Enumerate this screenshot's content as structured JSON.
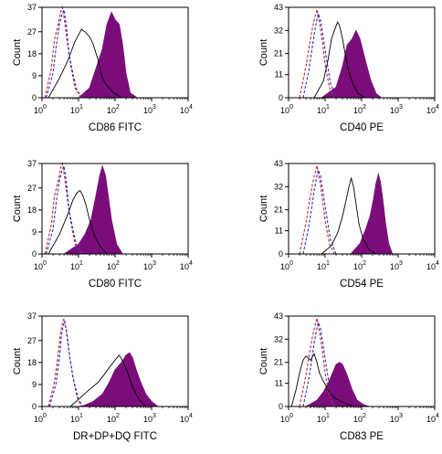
{
  "page": {
    "background": "#ffffff"
  },
  "style": {
    "fill_color": "#7b0d7b",
    "open_color": "#000000",
    "dash_red": "#d42020",
    "dash_blue": "#2030d0",
    "axis_color": "#000000"
  },
  "chart_data": [
    {
      "type": "area",
      "xlabel": "CD86 FITC",
      "ylabel": "Count",
      "xscale": "log",
      "xlim": [
        1,
        10000
      ],
      "ylim": [
        0,
        37
      ],
      "x_ticks": [
        "10",
        "10",
        "10",
        "10",
        "10"
      ],
      "x_tick_exponents": [
        "0",
        "1",
        "2",
        "3",
        "4"
      ],
      "y_ticks": [
        "0",
        "9",
        "18",
        "27",
        "37"
      ],
      "series": [
        {
          "style": "filled",
          "color": "#7b0d7b",
          "x": [
            1,
            10,
            20,
            30,
            45,
            60,
            80,
            100,
            130,
            160,
            200,
            260,
            400
          ],
          "y": [
            0,
            0,
            4,
            12,
            20,
            30,
            35,
            32,
            30,
            22,
            10,
            2,
            0
          ]
        },
        {
          "style": "solid",
          "color": "#000000",
          "x": [
            1.5,
            3,
            5,
            8,
            12,
            15,
            20,
            25,
            35,
            45,
            60,
            90,
            150
          ],
          "y": [
            0,
            8,
            15,
            23,
            28,
            27,
            25,
            22,
            15,
            8,
            5,
            2,
            0
          ]
        },
        {
          "style": "dashed",
          "color": "#d42020",
          "x": [
            1.2,
            1.8,
            2.2,
            2.8,
            3.2,
            3.6,
            4,
            5,
            6,
            8,
            12
          ],
          "y": [
            0,
            12,
            24,
            30,
            35,
            37,
            33,
            22,
            14,
            4,
            0
          ]
        },
        {
          "style": "dashed",
          "color": "#2030d0",
          "x": [
            1.3,
            2,
            2.5,
            3,
            3.5,
            4,
            4.6,
            5.5,
            7,
            9,
            13
          ],
          "y": [
            0,
            10,
            22,
            30,
            34,
            36,
            30,
            18,
            10,
            3,
            0
          ]
        }
      ]
    },
    {
      "type": "area",
      "xlabel": "CD40 PE",
      "ylabel": "Count",
      "xscale": "log",
      "xlim": [
        1,
        10000
      ],
      "ylim": [
        0,
        43
      ],
      "x_ticks": [
        "10",
        "10",
        "10",
        "10",
        "10"
      ],
      "x_tick_exponents": [
        "0",
        "1",
        "2",
        "3",
        "4"
      ],
      "y_ticks": [
        "0",
        "11",
        "21",
        "32",
        "43"
      ],
      "series": [
        {
          "style": "filled",
          "color": "#7b0d7b",
          "x": [
            8,
            20,
            30,
            40,
            55,
            70,
            90,
            110,
            140,
            180,
            250,
            350
          ],
          "y": [
            0,
            5,
            15,
            25,
            28,
            32,
            28,
            22,
            15,
            8,
            2,
            0
          ]
        },
        {
          "style": "solid",
          "color": "#000000",
          "x": [
            5,
            9,
            12,
            15,
            18,
            22,
            25,
            30,
            36,
            45,
            60,
            80,
            120
          ],
          "y": [
            0,
            8,
            18,
            28,
            32,
            36,
            34,
            28,
            20,
            12,
            6,
            2,
            0
          ]
        },
        {
          "style": "dashed",
          "color": "#d42020",
          "x": [
            2,
            3,
            3.8,
            4.5,
            5.2,
            6,
            7,
            8.5,
            10,
            13,
            18
          ],
          "y": [
            0,
            15,
            26,
            33,
            38,
            42,
            36,
            26,
            16,
            5,
            0
          ]
        },
        {
          "style": "dashed",
          "color": "#2030d0",
          "x": [
            2.5,
            3.5,
            4.3,
            5,
            5.8,
            6.5,
            7.5,
            9,
            11,
            14,
            20
          ],
          "y": [
            0,
            12,
            22,
            30,
            36,
            40,
            37,
            28,
            18,
            7,
            0
          ]
        }
      ]
    },
    {
      "type": "area",
      "xlabel": "CD80 FITC",
      "ylabel": "Count",
      "xscale": "log",
      "xlim": [
        1,
        10000
      ],
      "ylim": [
        0,
        37
      ],
      "x_ticks": [
        "10",
        "10",
        "10",
        "10",
        "10"
      ],
      "x_tick_exponents": [
        "0",
        "1",
        "2",
        "3",
        "4"
      ],
      "y_ticks": [
        "0",
        "9",
        "18",
        "27",
        "37"
      ],
      "series": [
        {
          "style": "filled",
          "color": "#7b0d7b",
          "x": [
            4,
            10,
            15,
            22,
            30,
            38,
            45,
            55,
            65,
            80,
            110,
            160
          ],
          "y": [
            0,
            4,
            8,
            14,
            24,
            32,
            36,
            32,
            24,
            14,
            4,
            0
          ]
        },
        {
          "style": "solid",
          "color": "#000000",
          "x": [
            1.5,
            3,
            5,
            7,
            9,
            11,
            13,
            16,
            20,
            28,
            40,
            60
          ],
          "y": [
            0,
            8,
            16,
            22,
            25,
            26,
            24,
            20,
            14,
            7,
            3,
            0
          ]
        },
        {
          "style": "dashed",
          "color": "#d42020",
          "x": [
            1.2,
            1.8,
            2.2,
            2.8,
            3.2,
            3.6,
            4,
            5,
            6,
            8,
            12
          ],
          "y": [
            0,
            12,
            24,
            30,
            35,
            37,
            33,
            22,
            14,
            4,
            0
          ]
        },
        {
          "style": "dashed",
          "color": "#2030d0",
          "x": [
            1.3,
            2,
            2.5,
            3,
            3.5,
            4,
            4.6,
            5.5,
            7,
            9,
            13
          ],
          "y": [
            0,
            10,
            22,
            30,
            34,
            36,
            30,
            18,
            10,
            3,
            0
          ]
        }
      ]
    },
    {
      "type": "area",
      "xlabel": "CD54 PE",
      "ylabel": "Count",
      "xscale": "log",
      "xlim": [
        1,
        10000
      ],
      "ylim": [
        0,
        43
      ],
      "x_ticks": [
        "10",
        "10",
        "10",
        "10",
        "10"
      ],
      "x_tick_exponents": [
        "0",
        "1",
        "2",
        "3",
        "4"
      ],
      "y_ticks": [
        "0",
        "11",
        "21",
        "32",
        "43"
      ],
      "series": [
        {
          "style": "filled",
          "color": "#7b0d7b",
          "x": [
            50,
            90,
            130,
            170,
            210,
            250,
            290,
            330,
            380,
            450,
            550,
            700
          ],
          "y": [
            0,
            5,
            12,
            18,
            26,
            34,
            38,
            34,
            26,
            15,
            5,
            0
          ]
        },
        {
          "style": "solid",
          "color": "#000000",
          "x": [
            8,
            15,
            22,
            30,
            38,
            45,
            52,
            60,
            70,
            85,
            110,
            160,
            250
          ],
          "y": [
            0,
            4,
            10,
            18,
            26,
            32,
            36,
            32,
            24,
            14,
            7,
            2,
            0
          ]
        },
        {
          "style": "dashed",
          "color": "#d42020",
          "x": [
            2,
            3,
            3.8,
            4.5,
            5.2,
            6,
            7,
            8.5,
            10,
            13,
            18
          ],
          "y": [
            0,
            15,
            26,
            33,
            38,
            42,
            36,
            26,
            16,
            5,
            0
          ]
        },
        {
          "style": "dashed",
          "color": "#2030d0",
          "x": [
            2.5,
            3.5,
            4.3,
            5,
            5.8,
            6.5,
            7.5,
            9,
            11,
            14,
            20
          ],
          "y": [
            0,
            12,
            22,
            30,
            36,
            40,
            37,
            28,
            18,
            7,
            0
          ]
        }
      ]
    },
    {
      "type": "area",
      "xlabel": "DR+DP+DQ FITC",
      "ylabel": "Count",
      "xscale": "log",
      "xlim": [
        1,
        10000
      ],
      "ylim": [
        0,
        37
      ],
      "x_ticks": [
        "10",
        "10",
        "10",
        "10",
        "10"
      ],
      "x_tick_exponents": [
        "0",
        "1",
        "2",
        "3",
        "4"
      ],
      "y_ticks": [
        "0",
        "9",
        "18",
        "27",
        "37"
      ],
      "series": [
        {
          "style": "filled",
          "color": "#7b0d7b",
          "x": [
            12,
            25,
            45,
            70,
            100,
            150,
            200,
            250,
            300,
            380,
            500,
            700,
            1000,
            1500
          ],
          "y": [
            0,
            2,
            5,
            10,
            15,
            18,
            21,
            22,
            20,
            15,
            10,
            5,
            2,
            0
          ]
        },
        {
          "style": "solid",
          "color": "#000000",
          "x": [
            6,
            12,
            20,
            35,
            50,
            70,
            100,
            130,
            170,
            220,
            300,
            450,
            700
          ],
          "y": [
            0,
            4,
            7,
            10,
            13,
            16,
            19,
            21,
            18,
            14,
            8,
            3,
            0
          ]
        },
        {
          "style": "dashed",
          "color": "#d42020",
          "x": [
            1.5,
            2.2,
            2.8,
            3.2,
            3.6,
            4,
            4.5,
            5.5,
            7,
            9,
            12
          ],
          "y": [
            0,
            10,
            22,
            30,
            34,
            36,
            32,
            22,
            12,
            4,
            0
          ]
        },
        {
          "style": "dashed",
          "color": "#2030d0",
          "x": [
            1.6,
            2.4,
            3,
            3.4,
            3.8,
            4.2,
            4.8,
            5.8,
            7.5,
            10,
            13
          ],
          "y": [
            0,
            9,
            20,
            29,
            33,
            35,
            30,
            20,
            10,
            3,
            0
          ]
        }
      ]
    },
    {
      "type": "area",
      "xlabel": "CD83 PE",
      "ylabel": "Count",
      "xscale": "log",
      "xlim": [
        1,
        10000
      ],
      "ylim": [
        0,
        43
      ],
      "x_ticks": [
        "10",
        "10",
        "10",
        "10",
        "10"
      ],
      "x_tick_exponents": [
        "0",
        "1",
        "2",
        "3",
        "4"
      ],
      "y_ticks": [
        "0",
        "11",
        "21",
        "32",
        "43"
      ],
      "series": [
        {
          "style": "filled",
          "color": "#7b0d7b",
          "x": [
            3,
            6,
            9,
            12,
            16,
            20,
            25,
            30,
            40,
            55,
            75,
            110,
            160
          ],
          "y": [
            0,
            3,
            7,
            11,
            16,
            20,
            21,
            20,
            15,
            8,
            3,
            1,
            0
          ]
        },
        {
          "style": "solid",
          "color": "#000000",
          "x": [
            1.2,
            1.6,
            2,
            2.5,
            3,
            4,
            5,
            6,
            7,
            9,
            12,
            18,
            30,
            60
          ],
          "y": [
            0,
            8,
            16,
            22,
            24,
            22,
            25,
            21,
            16,
            12,
            8,
            4,
            2,
            0
          ]
        },
        {
          "style": "dashed",
          "color": "#d42020",
          "x": [
            2,
            3,
            3.8,
            4.5,
            5.2,
            6,
            7,
            8.5,
            10,
            13,
            18
          ],
          "y": [
            0,
            15,
            26,
            33,
            38,
            42,
            36,
            26,
            16,
            5,
            0
          ]
        },
        {
          "style": "dashed",
          "color": "#2030d0",
          "x": [
            2.5,
            3.5,
            4.3,
            5,
            5.8,
            6.5,
            7.5,
            9,
            11,
            14,
            20
          ],
          "y": [
            0,
            12,
            22,
            30,
            36,
            40,
            37,
            28,
            18,
            7,
            0
          ]
        }
      ]
    }
  ]
}
